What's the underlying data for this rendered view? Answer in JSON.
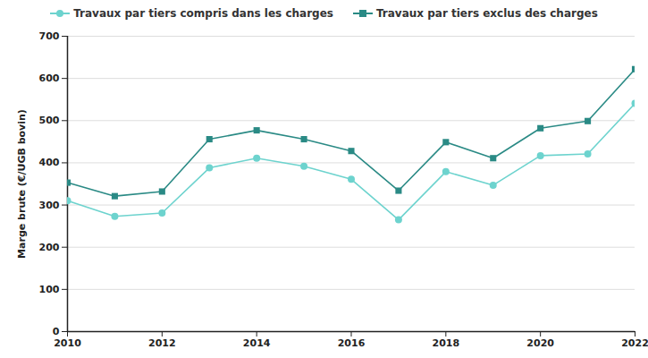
{
  "chart_data": {
    "type": "line",
    "y_label": "Marge brute (€/UGB bovin)",
    "x": [
      2010,
      2011,
      2012,
      2013,
      2014,
      2015,
      2016,
      2017,
      2018,
      2019,
      2020,
      2021,
      2022
    ],
    "series": [
      {
        "name": "Travaux par tiers compris dans les charges",
        "color": "#6dd3ce",
        "marker": "circle",
        "values": [
          310,
          273,
          281,
          388,
          411,
          392,
          361,
          265,
          379,
          347,
          417,
          421,
          541
        ]
      },
      {
        "name": "Travaux par tiers exclus des charges",
        "color": "#2a8a85",
        "marker": "square",
        "values": [
          353,
          321,
          332,
          456,
          477,
          456,
          428,
          334,
          449,
          411,
          482,
          499,
          622
        ]
      }
    ],
    "xlim": [
      2010,
      2022
    ],
    "xticks": [
      2010,
      2012,
      2014,
      2016,
      2018,
      2020,
      2022
    ],
    "ylim": [
      0,
      700
    ],
    "yticks": [
      0,
      100,
      200,
      300,
      400,
      500,
      600,
      700
    ],
    "grid": true,
    "legend": "top"
  }
}
